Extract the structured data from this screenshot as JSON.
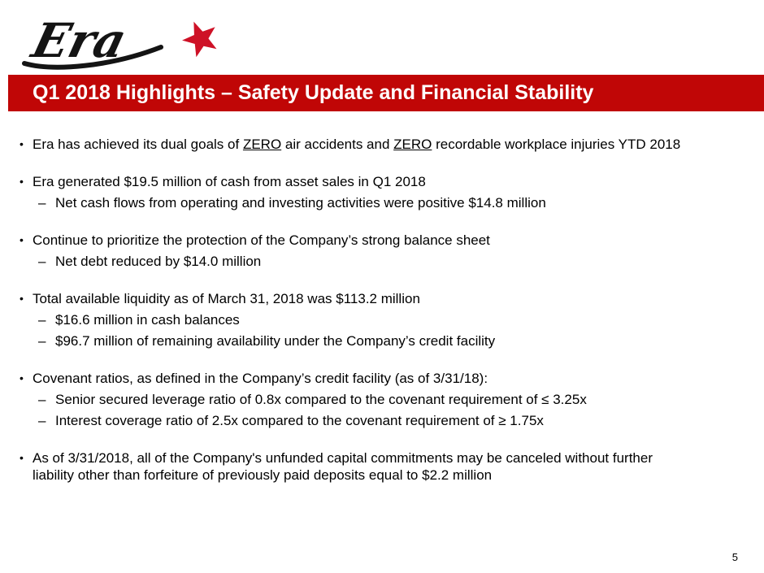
{
  "logo": {
    "brand_text": "Era",
    "star_icon": "star-icon",
    "text_color": "#141414",
    "star_color": "#CE1126"
  },
  "header": {
    "title": "Q1 2018 Highlights – Safety Update and Financial Stability",
    "bg_color": "#C00606",
    "text_color": "#FFFFFF"
  },
  "content": {
    "bullet_char": "•",
    "dash_char": "–",
    "groups": [
      {
        "items": [
          {
            "level": 1,
            "segments": [
              {
                "text": "Era has achieved its dual goals of "
              },
              {
                "text": "ZERO",
                "underline": true
              },
              {
                "text": " air accidents and "
              },
              {
                "text": "ZERO",
                "underline": true
              },
              {
                "text": " recordable workplace injuries YTD 2018"
              }
            ]
          }
        ]
      },
      {
        "items": [
          {
            "level": 1,
            "segments": [
              {
                "text": "Era generated $19.5 million of cash from asset sales in Q1 2018"
              }
            ]
          },
          {
            "level": 2,
            "segments": [
              {
                "text": "Net cash flows from operating and investing activities were positive $14.8 million"
              }
            ]
          }
        ]
      },
      {
        "items": [
          {
            "level": 1,
            "segments": [
              {
                "text": "Continue to prioritize the protection of the Company’s strong balance sheet"
              }
            ]
          },
          {
            "level": 2,
            "segments": [
              {
                "text": "Net debt reduced by $14.0 million"
              }
            ]
          }
        ]
      },
      {
        "items": [
          {
            "level": 1,
            "segments": [
              {
                "text": "Total available liquidity as of March 31, 2018 was $113.2 million"
              }
            ]
          },
          {
            "level": 2,
            "segments": [
              {
                "text": "$16.6 million in cash balances"
              }
            ]
          },
          {
            "level": 2,
            "segments": [
              {
                "text": "$96.7 million of remaining availability under the Company’s credit facility"
              }
            ]
          }
        ]
      },
      {
        "items": [
          {
            "level": 1,
            "segments": [
              {
                "text": "Covenant ratios, as defined in the Company’s credit facility (as of 3/31/18):"
              }
            ]
          },
          {
            "level": 2,
            "segments": [
              {
                "text": "Senior secured leverage ratio of 0.8x compared to the covenant requirement of ≤ 3.25x"
              }
            ]
          },
          {
            "level": 2,
            "segments": [
              {
                "text": "Interest coverage ratio of 2.5x compared to the covenant requirement of ≥ 1.75x"
              }
            ]
          }
        ]
      },
      {
        "items": [
          {
            "level": 1,
            "segments": [
              {
                "text": "As of 3/31/2018, all of the Company's unfunded capital commitments may be canceled without further"
              },
              {
                "br": true
              },
              {
                "text": "liability other than forfeiture of previously paid deposits equal to $2.2 million"
              }
            ]
          }
        ]
      }
    ]
  },
  "footer": {
    "page_number": "5"
  }
}
